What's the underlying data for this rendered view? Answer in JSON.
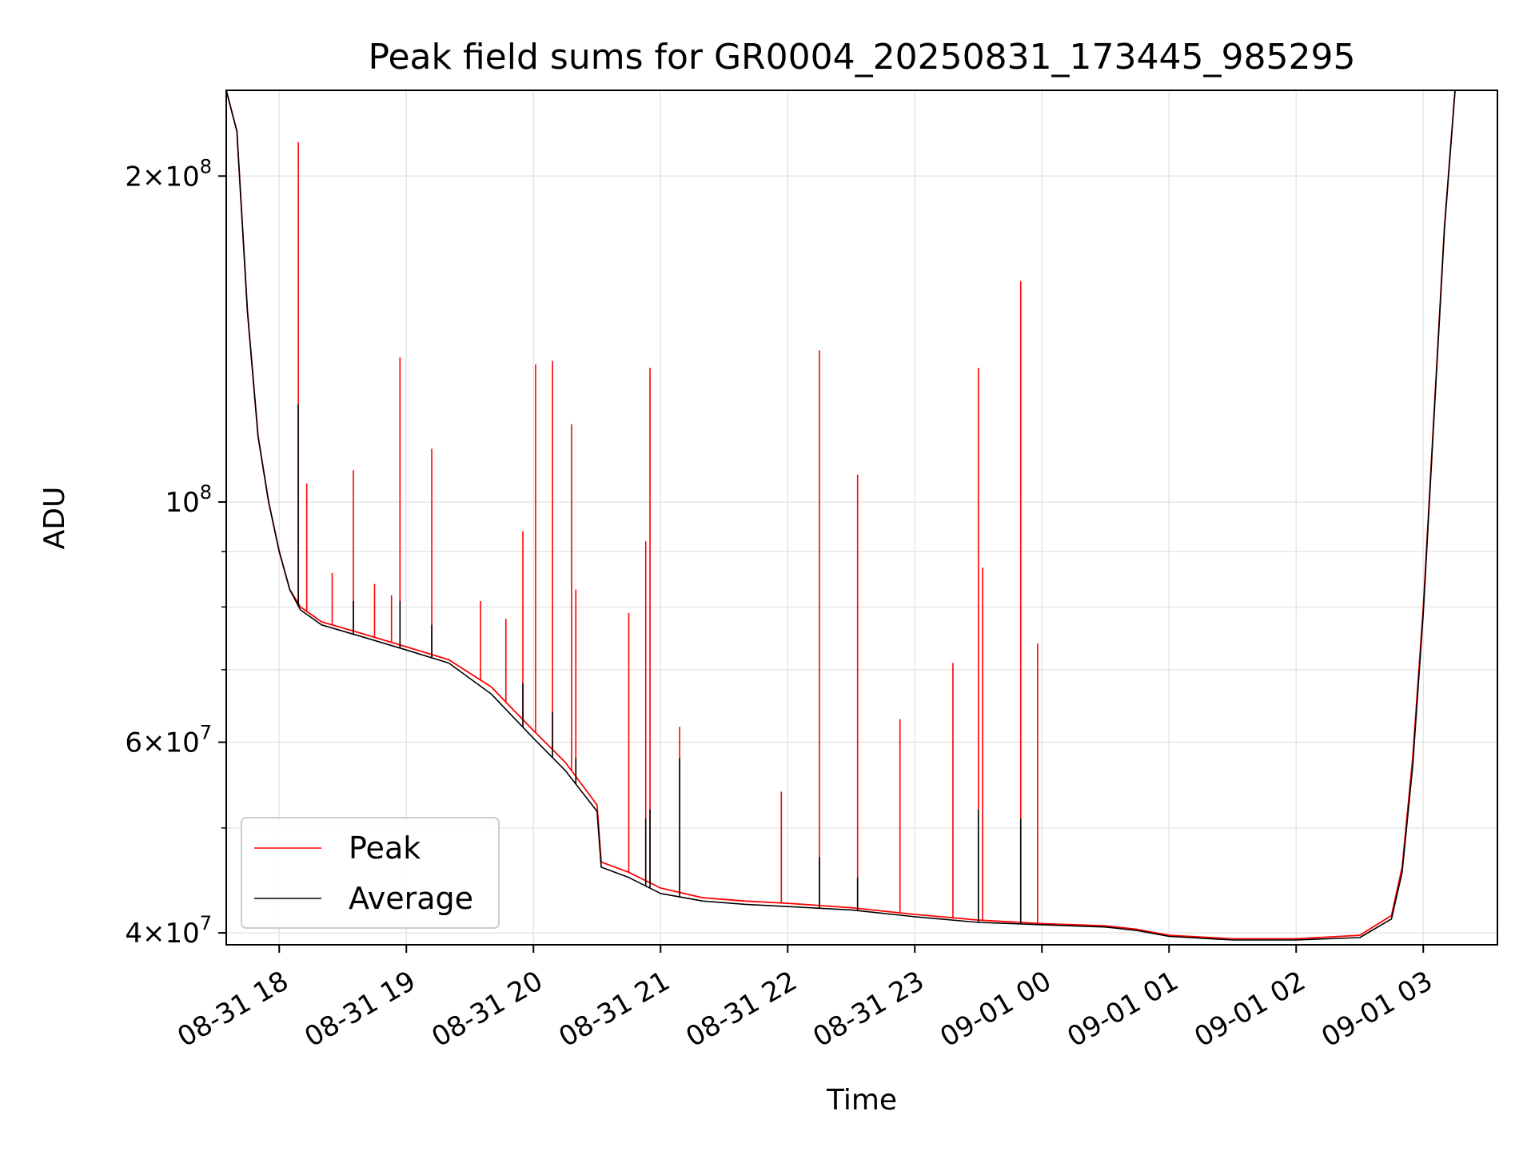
{
  "chart_data": {
    "type": "line",
    "title": "Peak field sums for GR0004_20250831_173445_985295",
    "xlabel": "Time",
    "ylabel": "ADU",
    "yscale": "log",
    "ylim": [
      39000000,
      240000000
    ],
    "xlim": [
      "2025-08-31 17:35",
      "2025-09-01 03:35"
    ],
    "grid": true,
    "legend_position": "lower-left",
    "x_ticks": [
      "2025-08-31 18:00",
      "2025-08-31 19:00",
      "2025-08-31 20:00",
      "2025-08-31 21:00",
      "2025-08-31 22:00",
      "2025-08-31 23:00",
      "2025-09-01 00:00",
      "2025-09-01 01:00",
      "2025-09-01 02:00",
      "2025-09-01 03:00"
    ],
    "x_tick_labels": [
      "08-31 18",
      "08-31 19",
      "08-31 20",
      "08-31 21",
      "08-31 22",
      "08-31 23",
      "09-01 00",
      "09-01 01",
      "09-01 02",
      "09-01 03"
    ],
    "y_ticks": [
      {
        "value": 40000000,
        "base": "4",
        "exp": "7"
      },
      {
        "value": 60000000,
        "base": "6",
        "exp": "7"
      },
      {
        "value": 100000000,
        "base": "10",
        "exp": "8"
      },
      {
        "value": 200000000,
        "base": "2",
        "exp": "8"
      }
    ],
    "series": [
      {
        "name": "Peak",
        "color": "#ff0000",
        "baseline": [
          [
            "2025-08-31 17:35",
            240000000
          ],
          [
            "2025-08-31 17:40",
            220000000
          ],
          [
            "2025-08-31 17:45",
            150000000
          ],
          [
            "2025-08-31 17:50",
            115000000
          ],
          [
            "2025-08-31 17:55",
            100000000
          ],
          [
            "2025-08-31 18:00",
            90000000
          ],
          [
            "2025-08-31 18:05",
            83000000
          ],
          [
            "2025-08-31 18:10",
            80000000
          ],
          [
            "2025-08-31 18:20",
            77500000
          ],
          [
            "2025-08-31 18:40",
            75500000
          ],
          [
            "2025-08-31 19:00",
            73500000
          ],
          [
            "2025-08-31 19:20",
            71500000
          ],
          [
            "2025-08-31 19:40",
            67500000
          ],
          [
            "2025-08-31 20:00",
            61500000
          ],
          [
            "2025-08-31 20:15",
            57500000
          ],
          [
            "2025-08-31 20:30",
            52500000
          ],
          [
            "2025-08-31 20:32",
            46500000
          ],
          [
            "2025-08-31 20:45",
            45500000
          ],
          [
            "2025-08-31 21:00",
            44000000
          ],
          [
            "2025-08-31 21:20",
            43100000
          ],
          [
            "2025-08-31 21:40",
            42800000
          ],
          [
            "2025-08-31 22:00",
            42600000
          ],
          [
            "2025-08-31 22:30",
            42200000
          ],
          [
            "2025-08-31 23:00",
            41600000
          ],
          [
            "2025-08-31 23:30",
            41100000
          ],
          [
            "2025-09-01 00:00",
            40800000
          ],
          [
            "2025-09-01 00:30",
            40600000
          ],
          [
            "2025-09-01 00:45",
            40300000
          ],
          [
            "2025-09-01 01:00",
            39800000
          ],
          [
            "2025-09-01 01:30",
            39500000
          ],
          [
            "2025-09-01 02:00",
            39500000
          ],
          [
            "2025-09-01 02:30",
            39800000
          ],
          [
            "2025-09-01 02:45",
            41500000
          ],
          [
            "2025-09-01 02:50",
            46000000
          ],
          [
            "2025-09-01 02:55",
            58000000
          ],
          [
            "2025-09-01 03:00",
            80000000
          ],
          [
            "2025-09-01 03:05",
            120000000
          ],
          [
            "2025-09-01 03:10",
            180000000
          ],
          [
            "2025-09-01 03:15",
            240000000
          ],
          [
            "2025-09-01 03:35",
            240000000
          ]
        ],
        "spikes": [
          [
            "2025-08-31 18:09",
            215000000
          ],
          [
            "2025-08-31 18:13",
            104000000
          ],
          [
            "2025-08-31 18:25",
            86000000
          ],
          [
            "2025-08-31 18:35",
            107000000
          ],
          [
            "2025-08-31 18:45",
            84000000
          ],
          [
            "2025-08-31 18:53",
            82000000
          ],
          [
            "2025-08-31 18:57",
            136000000
          ],
          [
            "2025-08-31 19:12",
            112000000
          ],
          [
            "2025-08-31 19:35",
            81000000
          ],
          [
            "2025-08-31 19:47",
            78000000
          ],
          [
            "2025-08-31 19:55",
            94000000
          ],
          [
            "2025-08-31 20:01",
            134000000
          ],
          [
            "2025-08-31 20:09",
            135000000
          ],
          [
            "2025-08-31 20:18",
            118000000
          ],
          [
            "2025-08-31 20:20",
            83000000
          ],
          [
            "2025-08-31 20:45",
            79000000
          ],
          [
            "2025-08-31 20:53",
            92000000
          ],
          [
            "2025-08-31 20:55",
            133000000
          ],
          [
            "2025-08-31 21:09",
            62000000
          ],
          [
            "2025-08-31 21:57",
            54000000
          ],
          [
            "2025-08-31 22:15",
            138000000
          ],
          [
            "2025-08-31 22:33",
            106000000
          ],
          [
            "2025-08-31 22:53",
            63000000
          ],
          [
            "2025-08-31 23:18",
            71000000
          ],
          [
            "2025-08-31 23:30",
            133000000
          ],
          [
            "2025-08-31 23:32",
            87000000
          ],
          [
            "2025-08-31 23:50",
            160000000
          ],
          [
            "2025-08-31 23:58",
            74000000
          ]
        ]
      },
      {
        "name": "Average",
        "color": "#000000",
        "baseline": [
          [
            "2025-08-31 17:35",
            240000000
          ],
          [
            "2025-08-31 17:40",
            220000000
          ],
          [
            "2025-08-31 17:45",
            150000000
          ],
          [
            "2025-08-31 17:50",
            115000000
          ],
          [
            "2025-08-31 17:55",
            100000000
          ],
          [
            "2025-08-31 18:00",
            90000000
          ],
          [
            "2025-08-31 18:05",
            83000000
          ],
          [
            "2025-08-31 18:10",
            79500000
          ],
          [
            "2025-08-31 18:20",
            77000000
          ],
          [
            "2025-08-31 18:40",
            75000000
          ],
          [
            "2025-08-31 19:00",
            73000000
          ],
          [
            "2025-08-31 19:20",
            71000000
          ],
          [
            "2025-08-31 19:40",
            66500000
          ],
          [
            "2025-08-31 20:00",
            60500000
          ],
          [
            "2025-08-31 20:15",
            56500000
          ],
          [
            "2025-08-31 20:30",
            51800000
          ],
          [
            "2025-08-31 20:32",
            46000000
          ],
          [
            "2025-08-31 20:45",
            45000000
          ],
          [
            "2025-08-31 21:00",
            43500000
          ],
          [
            "2025-08-31 21:20",
            42800000
          ],
          [
            "2025-08-31 21:40",
            42500000
          ],
          [
            "2025-08-31 22:00",
            42300000
          ],
          [
            "2025-08-31 22:30",
            42000000
          ],
          [
            "2025-08-31 23:00",
            41400000
          ],
          [
            "2025-08-31 23:30",
            40900000
          ],
          [
            "2025-09-01 00:00",
            40700000
          ],
          [
            "2025-09-01 00:30",
            40500000
          ],
          [
            "2025-09-01 00:45",
            40200000
          ],
          [
            "2025-09-01 01:00",
            39700000
          ],
          [
            "2025-09-01 01:30",
            39400000
          ],
          [
            "2025-09-01 02:00",
            39400000
          ],
          [
            "2025-09-01 02:30",
            39600000
          ],
          [
            "2025-09-01 02:45",
            41200000
          ],
          [
            "2025-09-01 02:50",
            45500000
          ],
          [
            "2025-09-01 02:55",
            57000000
          ],
          [
            "2025-09-01 03:00",
            79000000
          ],
          [
            "2025-09-01 03:05",
            119000000
          ],
          [
            "2025-09-01 03:10",
            179000000
          ],
          [
            "2025-09-01 03:15",
            240000000
          ],
          [
            "2025-09-01 03:35",
            240000000
          ]
        ],
        "spikes": [
          [
            "2025-08-31 18:09",
            123000000
          ],
          [
            "2025-08-31 18:35",
            81000000
          ],
          [
            "2025-08-31 18:57",
            81000000
          ],
          [
            "2025-08-31 19:12",
            77000000
          ],
          [
            "2025-08-31 19:55",
            68000000
          ],
          [
            "2025-08-31 20:09",
            64000000
          ],
          [
            "2025-08-31 20:20",
            58000000
          ],
          [
            "2025-08-31 20:53",
            51000000
          ],
          [
            "2025-08-31 20:55",
            52000000
          ],
          [
            "2025-08-31 21:09",
            58000000
          ],
          [
            "2025-08-31 22:15",
            47000000
          ],
          [
            "2025-08-31 22:33",
            45000000
          ],
          [
            "2025-08-31 23:30",
            52000000
          ],
          [
            "2025-08-31 23:50",
            51000000
          ]
        ]
      }
    ]
  }
}
